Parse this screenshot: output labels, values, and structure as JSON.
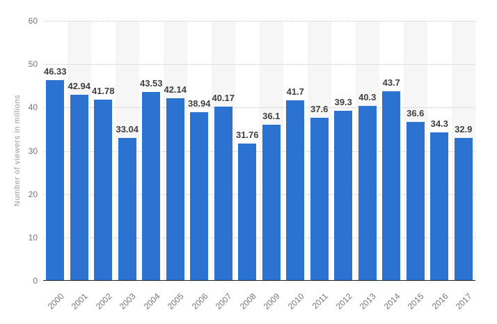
{
  "chart_data": {
    "type": "bar",
    "title": "",
    "categories": [
      "2000",
      "2001",
      "2002",
      "2003",
      "2004",
      "2005",
      "2006",
      "2007",
      "2008",
      "2009",
      "2010",
      "2011",
      "2012",
      "2013",
      "2014",
      "2015",
      "2016",
      "2017"
    ],
    "values": [
      46.33,
      42.94,
      41.78,
      33.04,
      43.53,
      42.14,
      38.94,
      40.17,
      31.76,
      36.1,
      41.7,
      37.6,
      39.3,
      40.3,
      43.7,
      36.6,
      34.3,
      32.9
    ],
    "value_labels": [
      "46.33",
      "42.94",
      "41.78",
      "33.04",
      "43.53",
      "42.14",
      "38.94",
      "40.17",
      "31.76",
      "36.1",
      "41.7",
      "37.6",
      "39.3",
      "40.3",
      "43.7",
      "36.6",
      "34.3",
      "32.9"
    ],
    "xlabel": "",
    "ylabel": "Number of viewers in millions",
    "ylim": [
      0,
      60
    ],
    "yticks": [
      0,
      10,
      20,
      30,
      40,
      50,
      60
    ],
    "grid": "horizontal-dotted",
    "legend": "none",
    "bar_color": "#2c72d0",
    "stripe_color": "#f6f6f6",
    "gridline_color": "#c9c9c9",
    "value_label_color": "#3f3f3f",
    "tick_label_color": "#757575",
    "axis_line_color": "#222222"
  }
}
